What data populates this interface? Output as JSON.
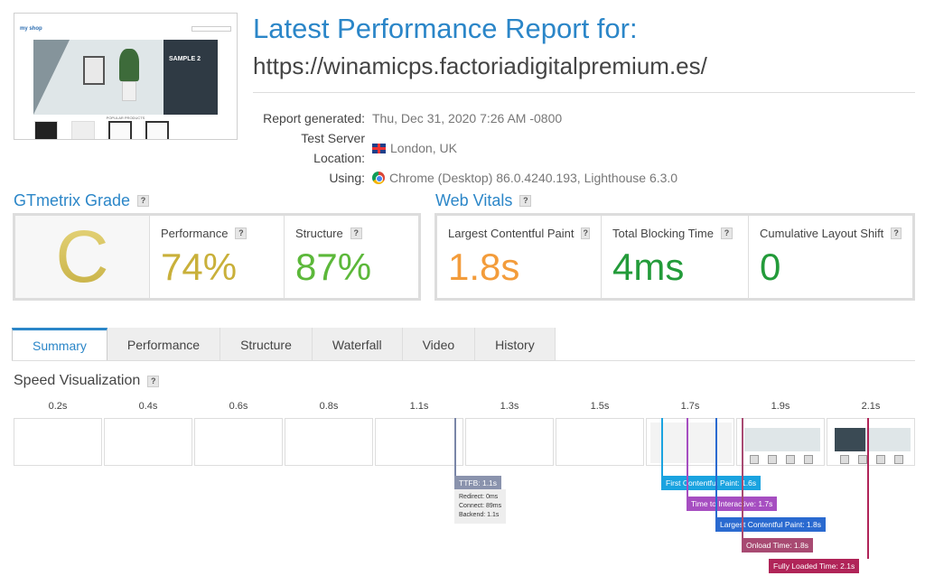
{
  "header": {
    "title": "Latest Performance Report for:",
    "url": "https://winamicps.factoriadigitalpremium.es/"
  },
  "thumbnail": {
    "logo": "my shop",
    "hero_text": "SAMPLE 2",
    "section": "POPULAR PRODUCTS"
  },
  "meta": [
    {
      "label": "Report generated:",
      "value": "Thu, Dec 31, 2020 7:26 AM -0800",
      "icon": ""
    },
    {
      "label": "Test Server Location:",
      "value": "London, UK",
      "icon": "uk-flag-icon"
    },
    {
      "label": "Using:",
      "value": "Chrome (Desktop) 86.0.4240.193, Lighthouse 6.3.0",
      "icon": "chrome-icon"
    }
  ],
  "grade": {
    "heading": "GTmetrix Grade",
    "letter": "C",
    "performance_label": "Performance",
    "performance_value": "74%",
    "structure_label": "Structure",
    "structure_value": "87%"
  },
  "vitals": {
    "heading": "Web Vitals",
    "lcp_label": "Largest Contentful Paint",
    "lcp_value": "1.8s",
    "tbt_label": "Total Blocking Time",
    "tbt_value": "4ms",
    "cls_label": "Cumulative Layout Shift",
    "cls_value": "0"
  },
  "colors": {
    "accent": "#2b86c8",
    "performance": "#c9b03a",
    "structure": "#5cb83a",
    "lcp": "#f39c3b",
    "tbt": "#239b3a",
    "cls": "#239b3a"
  },
  "tabs": [
    "Summary",
    "Performance",
    "Structure",
    "Waterfall",
    "Video",
    "History"
  ],
  "active_tab": "Summary",
  "speed": {
    "heading": "Speed Visualization",
    "frames": [
      "0.2s",
      "0.4s",
      "0.6s",
      "0.8s",
      "1.1s",
      "1.3s",
      "1.5s",
      "1.7s",
      "1.9s",
      "2.1s"
    ],
    "ttfb": {
      "label": "TTFB: 1.1s",
      "redirect": "Redirect: 0ms",
      "connect": "Connect: 89ms",
      "backend": "Backend: 1.1s"
    },
    "markers": [
      {
        "label": "First Contentful Paint: 1.6s",
        "color": "#1aa3e0"
      },
      {
        "label": "Time to Interactive: 1.7s",
        "color": "#a64ec1"
      },
      {
        "label": "Largest Contentful Paint: 1.8s",
        "color": "#2a6ad0"
      },
      {
        "label": "Onload Time: 1.8s",
        "color": "#a84a72"
      },
      {
        "label": "Fully Loaded Time: 2.1s",
        "color": "#b02458"
      }
    ]
  }
}
